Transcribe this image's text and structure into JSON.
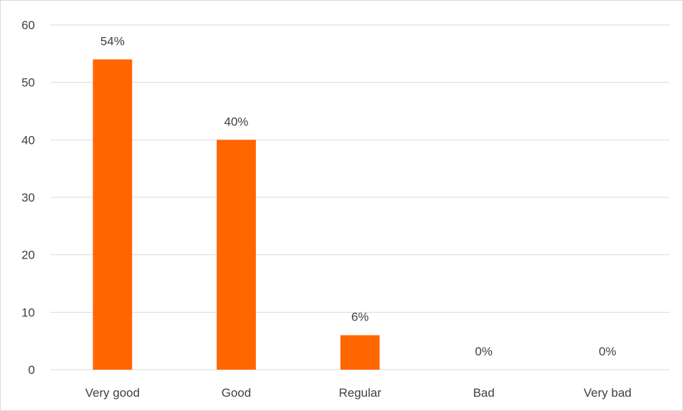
{
  "chart_data": {
    "type": "bar",
    "categories": [
      "Very good",
      "Good",
      "Regular",
      "Bad",
      "Very bad"
    ],
    "values": [
      54,
      40,
      6,
      0,
      0
    ],
    "data_labels": [
      "54%",
      "40%",
      "6%",
      "0%",
      "0%"
    ],
    "title": "",
    "xlabel": "",
    "ylabel": "",
    "ylim": [
      0,
      60
    ],
    "yticks": [
      0,
      10,
      20,
      30,
      40,
      50,
      60
    ],
    "grid": true,
    "legend": "none",
    "bar_color": "#FF6600",
    "grid_color": "#D9D9D9",
    "text_color": "#404040"
  }
}
